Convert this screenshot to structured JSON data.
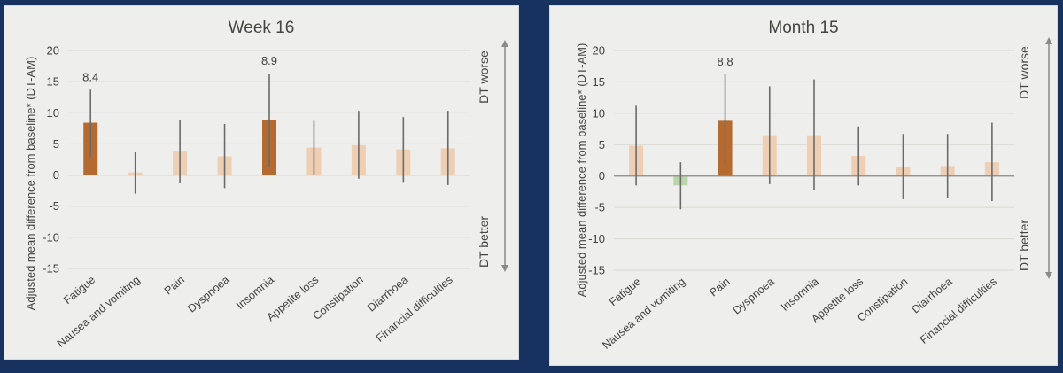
{
  "colors": {
    "page_background": "#17325f",
    "panel_background": "#eeeeec",
    "bar_highlight": "#b56b30",
    "bar_light": "#efcfb3",
    "bar_negative": "#b9d6a9",
    "error_bar": "#6b6b6b",
    "gridline": "#d7d7d3",
    "axis": "#8a8a8a",
    "text": "#404040"
  },
  "chart_data": [
    {
      "type": "bar",
      "title": "Week 16",
      "ylabel": "Adjusted mean difference from baseline* (DT-AM)",
      "xlabel": "",
      "ylim": [
        -15,
        20
      ],
      "yticks": [
        -15,
        -10,
        -5,
        0,
        5,
        10,
        15,
        20
      ],
      "grid": true,
      "categories": [
        "Fatigue",
        "Nausea and vomiting",
        "Pain",
        "Dyspnoea",
        "Insomnia",
        "Appetite loss",
        "Constipation",
        "Diarrhoea",
        "Financial difficulties"
      ],
      "values": [
        8.4,
        0.4,
        3.9,
        3.0,
        8.9,
        4.4,
        4.8,
        4.1,
        4.3
      ],
      "error_low": [
        2.8,
        -3.0,
        -1.2,
        -2.1,
        1.3,
        0.0,
        -0.6,
        -1.1,
        -1.6
      ],
      "error_high": [
        13.7,
        3.7,
        8.9,
        8.2,
        16.3,
        8.7,
        10.3,
        9.3,
        10.3
      ],
      "highlight": [
        true,
        false,
        false,
        false,
        true,
        false,
        false,
        false,
        false
      ],
      "data_labels": [
        "8.4",
        "",
        "",
        "",
        "8.9",
        "",
        "",
        "",
        ""
      ],
      "arrow_labels": {
        "up": "DT worse",
        "down": "DT better"
      }
    },
    {
      "type": "bar",
      "title": "Month 15",
      "ylabel": "Adjusted mean difference from baseline* (DT-AM)",
      "xlabel": "",
      "ylim": [
        -15,
        20
      ],
      "yticks": [
        -15,
        -10,
        -5,
        0,
        5,
        10,
        15,
        20
      ],
      "grid": true,
      "categories": [
        "Fatigue",
        "Nausea and vomiting",
        "Pain",
        "Dyspnoea",
        "Insomnia",
        "Appetite loss",
        "Constipation",
        "Diarrhoea",
        "Financial difficulties"
      ],
      "values": [
        4.8,
        -1.5,
        8.8,
        6.5,
        6.5,
        3.2,
        1.5,
        1.6,
        2.2
      ],
      "error_low": [
        -1.5,
        -5.3,
        1.9,
        -1.3,
        -2.3,
        -1.5,
        -3.7,
        -3.5,
        -4.0
      ],
      "error_high": [
        11.2,
        2.2,
        16.2,
        14.3,
        15.4,
        7.9,
        6.7,
        6.7,
        8.5
      ],
      "highlight": [
        false,
        false,
        true,
        false,
        false,
        false,
        false,
        false,
        false
      ],
      "data_labels": [
        "",
        "",
        "8.8",
        "",
        "",
        "",
        "",
        "",
        ""
      ],
      "arrow_labels": {
        "up": "DT worse",
        "down": "DT better"
      }
    }
  ]
}
